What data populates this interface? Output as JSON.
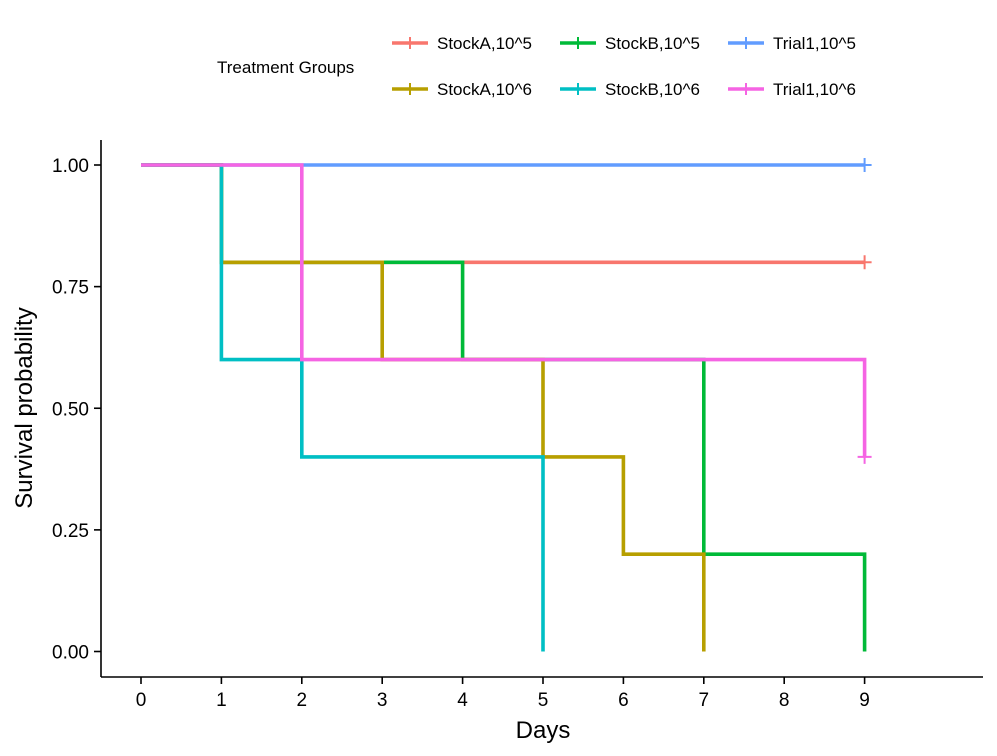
{
  "chart_data": {
    "type": "line",
    "subtype": "kaplan-meier-step",
    "xlabel": "Days",
    "ylabel": "Survival probability",
    "xlim": [
      -0.5,
      10.5
    ],
    "ylim": [
      -0.05,
      1.05
    ],
    "xticks": [
      0,
      1,
      2,
      3,
      4,
      5,
      6,
      7,
      8,
      9
    ],
    "xtick_labels": [
      "0",
      "1",
      "2",
      "3",
      "4",
      "5",
      "6",
      "7",
      "8",
      "9"
    ],
    "yticks": [
      0,
      0.25,
      0.5,
      0.75,
      1.0
    ],
    "ytick_labels": [
      "0.00",
      "0.25",
      "0.50",
      "0.75",
      "1.00"
    ],
    "grid": false,
    "legend": {
      "title": "Treatment Groups",
      "position": "top",
      "columns": 3
    },
    "series": [
      {
        "name": "StockA,10^5",
        "color": "#F8766D",
        "steps": [
          [
            0,
            1.0
          ],
          [
            1,
            0.8
          ]
        ],
        "end_x": 9,
        "censor": [
          [
            9,
            0.8
          ]
        ]
      },
      {
        "name": "StockB,10^5",
        "color": "#00BA38",
        "steps": [
          [
            0,
            1.0
          ],
          [
            1,
            0.8
          ],
          [
            4,
            0.6
          ],
          [
            7,
            0.2
          ],
          [
            9,
            0.0
          ]
        ],
        "end_x": 9,
        "censor": []
      },
      {
        "name": "Trial1,10^5",
        "color": "#619CFF",
        "steps": [
          [
            0,
            1.0
          ]
        ],
        "end_x": 9,
        "censor": [
          [
            9,
            1.0
          ]
        ]
      },
      {
        "name": "StockA,10^6",
        "color": "#B79F00",
        "steps": [
          [
            0,
            1.0
          ],
          [
            1,
            0.8
          ],
          [
            3,
            0.6
          ],
          [
            5,
            0.4
          ],
          [
            6,
            0.2
          ],
          [
            7,
            0.0
          ]
        ],
        "end_x": 7,
        "censor": []
      },
      {
        "name": "StockB,10^6",
        "color": "#00BFC4",
        "steps": [
          [
            0,
            1.0
          ],
          [
            1,
            0.6
          ],
          [
            2,
            0.4
          ],
          [
            5,
            0.0
          ]
        ],
        "end_x": 5,
        "censor": []
      },
      {
        "name": "Trial1,10^6",
        "color": "#F564E3",
        "steps": [
          [
            0,
            1.0
          ],
          [
            2,
            0.6
          ],
          [
            9,
            0.4
          ]
        ],
        "end_x": 9,
        "censor": [
          [
            9,
            0.4
          ]
        ]
      }
    ]
  }
}
